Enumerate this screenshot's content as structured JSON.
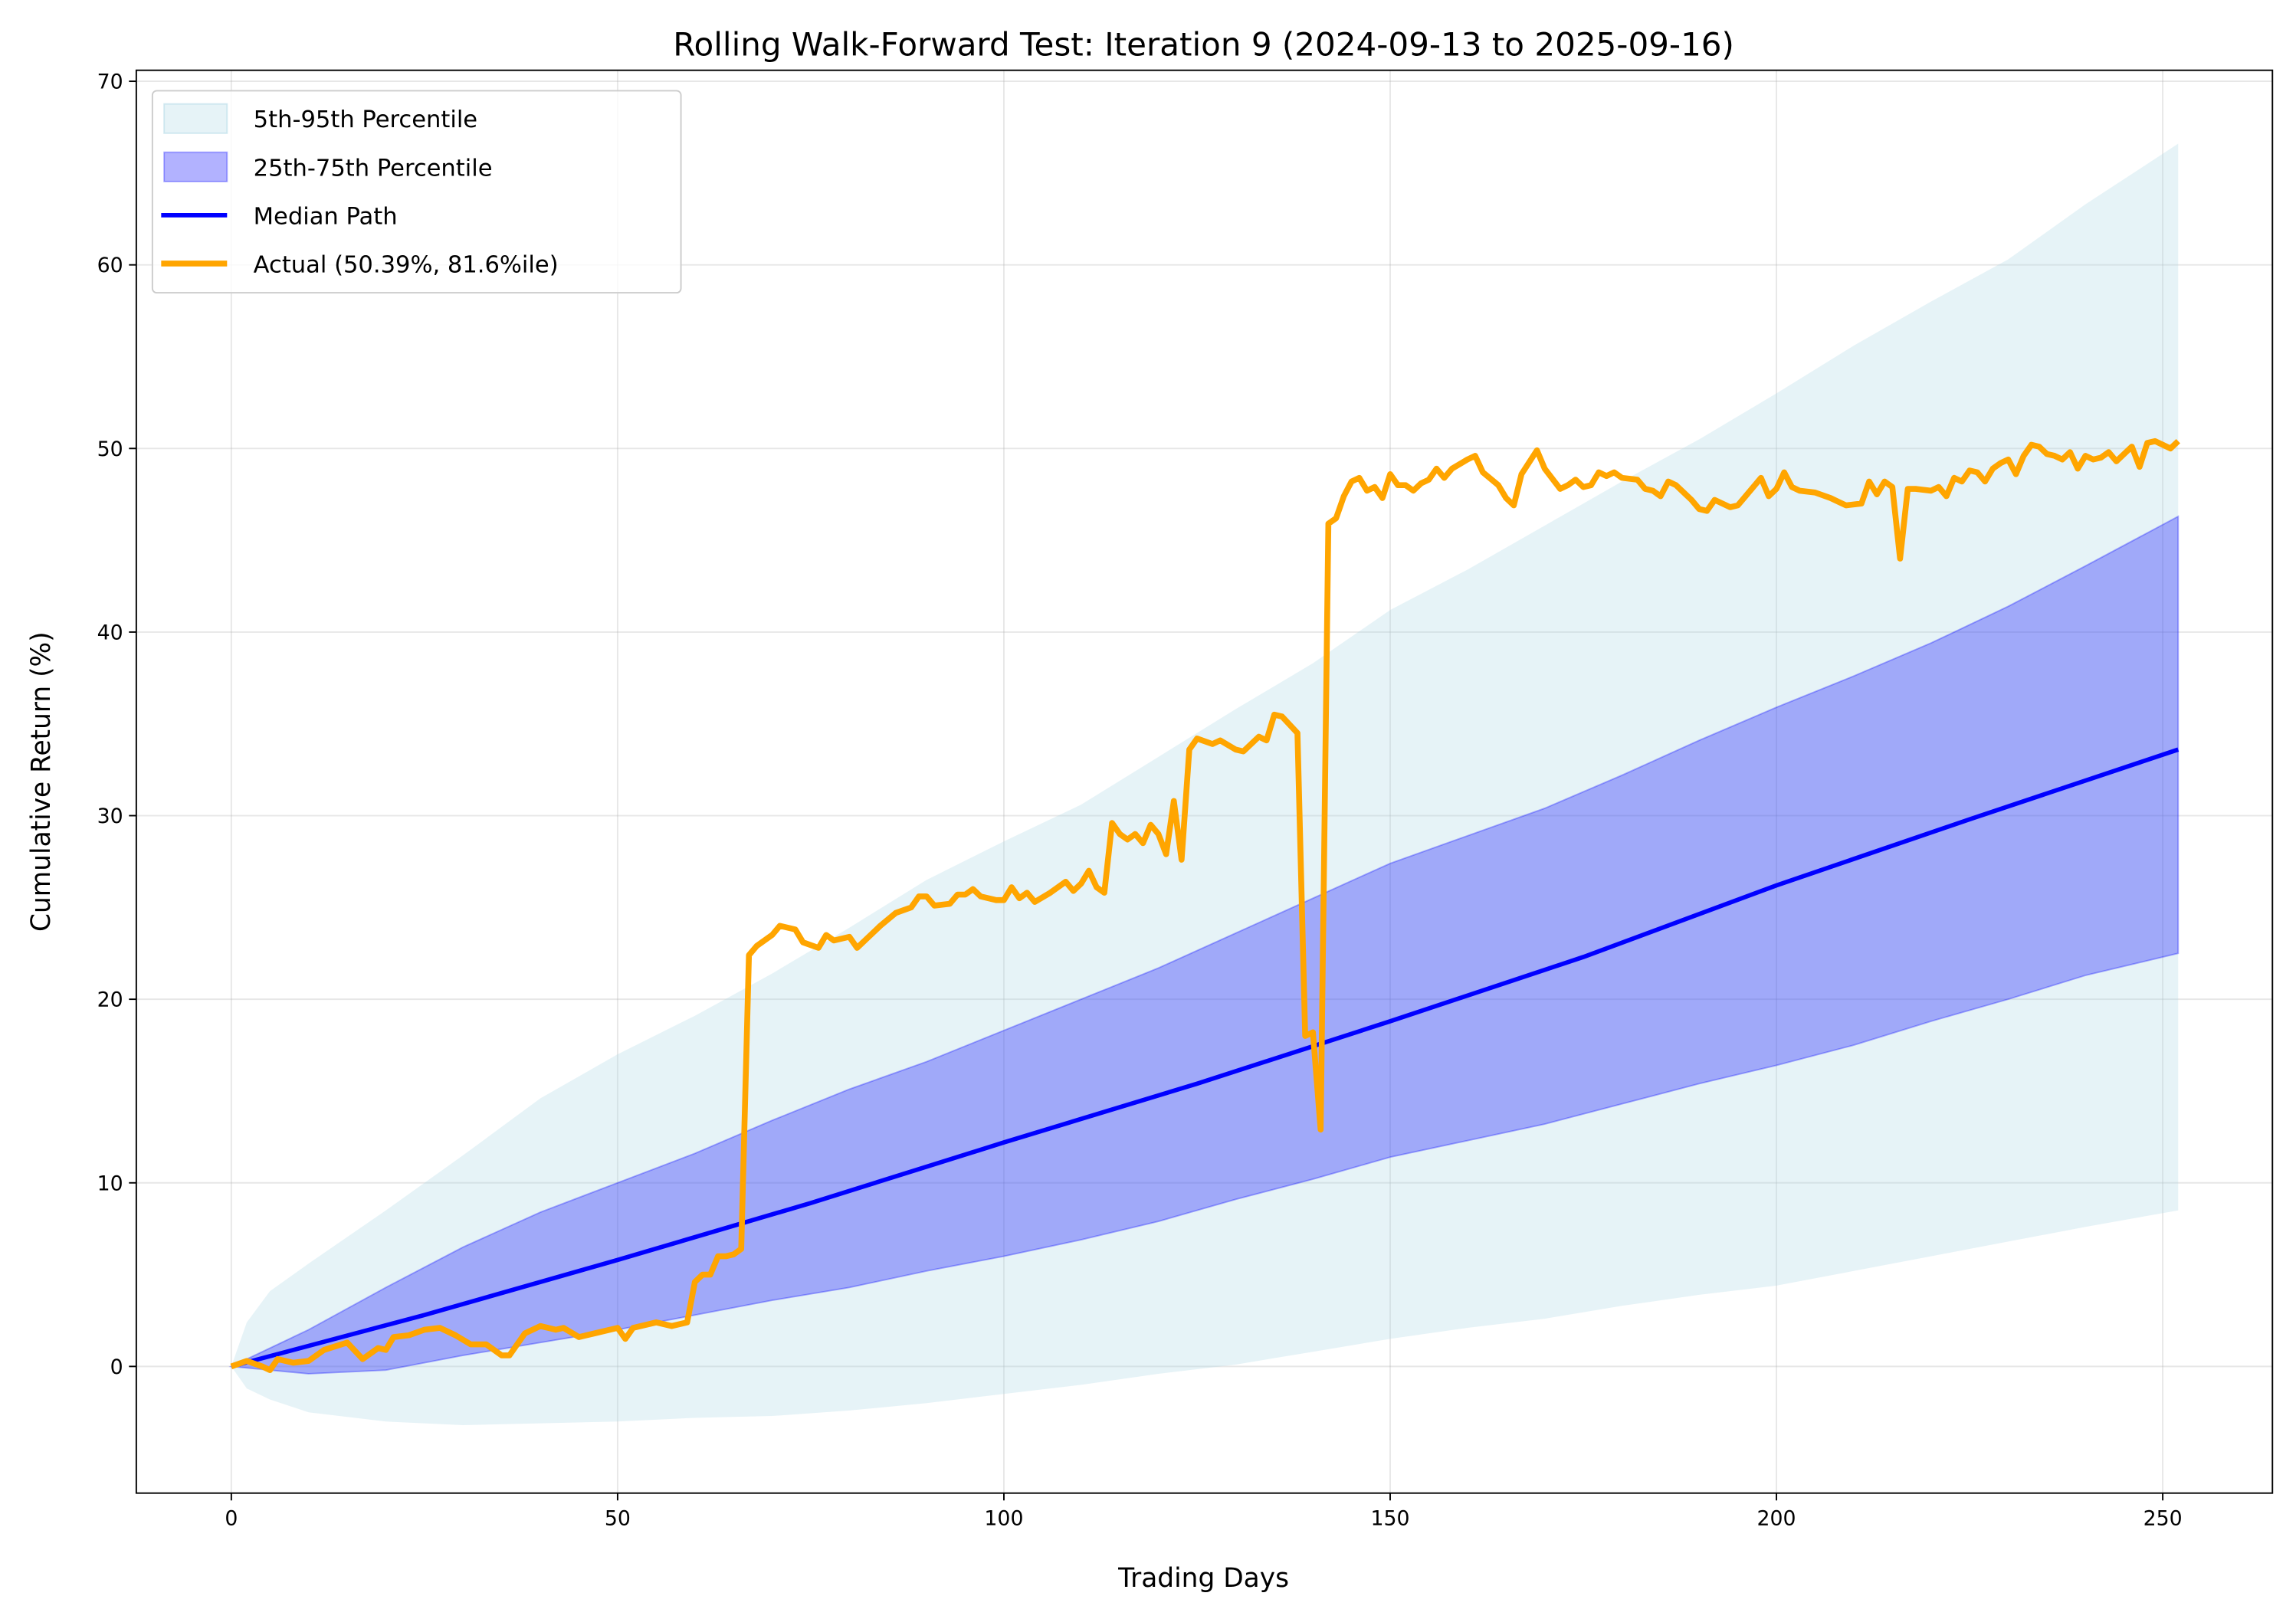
{
  "chart_data": {
    "type": "line",
    "title": "Rolling Walk-Forward Test: Iteration 9 (2024-09-13 to 2025-09-16)",
    "xlabel": "Trading Days",
    "ylabel": "Cumulative Return (%)",
    "xlim": [
      -12.3,
      264.2
    ],
    "ylim": [
      -6.9,
      70.6
    ],
    "xticks": [
      0,
      50,
      100,
      150,
      200,
      250
    ],
    "yticks": [
      0,
      10,
      20,
      30,
      40,
      50,
      60,
      70
    ],
    "grid": true,
    "legend_position": "top-left",
    "bands": [
      {
        "name": "5th-95th Percentile",
        "color": "#add8e6",
        "alpha": 0.3,
        "x": [
          0,
          2,
          5,
          10,
          20,
          30,
          40,
          50,
          60,
          70,
          80,
          90,
          100,
          110,
          120,
          130,
          140,
          150,
          160,
          170,
          180,
          190,
          200,
          210,
          220,
          230,
          240,
          252
        ],
        "lower": [
          0,
          -1.2,
          -1.8,
          -2.5,
          -3.0,
          -3.2,
          -3.1,
          -3.0,
          -2.8,
          -2.7,
          -2.4,
          -2.0,
          -1.5,
          -1.0,
          -0.4,
          0.1,
          0.8,
          1.5,
          2.1,
          2.6,
          3.3,
          3.9,
          4.4,
          5.2,
          6.0,
          6.8,
          7.6,
          8.5
        ],
        "upper": [
          0,
          2.4,
          4.1,
          5.6,
          8.5,
          11.5,
          14.6,
          17.0,
          19.1,
          21.4,
          23.9,
          26.5,
          28.6,
          30.6,
          33.2,
          35.8,
          38.3,
          41.2,
          43.4,
          45.8,
          48.2,
          50.5,
          53.0,
          55.6,
          58.0,
          60.3,
          63.3,
          66.6
        ]
      },
      {
        "name": "25th-75th Percentile",
        "color": "#0000ff",
        "alpha": 0.3,
        "x": [
          0,
          10,
          20,
          30,
          40,
          50,
          60,
          70,
          80,
          90,
          100,
          110,
          120,
          130,
          140,
          150,
          160,
          170,
          180,
          190,
          200,
          210,
          220,
          230,
          240,
          252
        ],
        "lower": [
          0,
          -0.4,
          -0.2,
          0.6,
          1.3,
          2.0,
          2.8,
          3.6,
          4.3,
          5.2,
          6.0,
          6.9,
          7.9,
          9.1,
          10.2,
          11.4,
          12.3,
          13.2,
          14.3,
          15.4,
          16.4,
          17.5,
          18.8,
          20.0,
          21.3,
          22.5
        ],
        "upper": [
          0,
          2.0,
          4.3,
          6.5,
          8.4,
          10.0,
          11.6,
          13.4,
          15.1,
          16.6,
          18.3,
          20.0,
          21.7,
          23.6,
          25.5,
          27.4,
          28.9,
          30.4,
          32.2,
          34.1,
          35.9,
          37.6,
          39.4,
          41.4,
          43.6,
          46.3
        ]
      }
    ],
    "series": [
      {
        "name": "Median Path",
        "color": "#0000ff",
        "x": [
          0,
          25,
          50,
          75,
          100,
          125,
          150,
          175,
          200,
          225,
          252
        ],
        "y": [
          0,
          2.8,
          5.8,
          8.9,
          12.2,
          15.4,
          18.8,
          22.3,
          26.2,
          29.8,
          33.6
        ]
      },
      {
        "name": "Actual (50.39%, 81.6%ile)",
        "color": "#ffa500",
        "x": [
          0,
          2,
          4,
          5,
          6,
          8,
          10,
          12,
          15,
          17,
          19,
          20,
          21,
          23,
          25,
          27,
          29,
          31,
          33,
          35,
          36,
          37,
          38,
          40,
          42,
          43,
          45,
          47,
          50,
          51,
          52,
          55,
          57,
          59,
          60,
          61,
          62,
          63,
          64,
          65,
          66,
          67,
          68,
          70,
          71,
          73,
          74,
          76,
          77,
          78,
          80,
          81,
          82,
          84,
          86,
          88,
          89,
          90,
          91,
          93,
          94,
          95,
          96,
          97,
          99,
          100,
          101,
          102,
          103,
          104,
          106,
          108,
          109,
          110,
          111,
          112,
          113,
          114,
          115,
          116,
          117,
          118,
          119,
          120,
          121,
          122,
          123,
          124,
          125,
          127,
          128,
          130,
          131,
          133,
          134,
          135,
          136,
          138,
          139,
          140,
          141,
          142,
          143,
          144,
          145,
          146,
          147,
          148,
          149,
          150,
          151,
          152,
          153,
          154,
          155,
          156,
          157,
          158,
          160,
          161,
          162,
          164,
          165,
          166,
          167,
          169,
          170,
          172,
          173,
          174,
          175,
          176,
          177,
          178,
          179,
          180,
          182,
          183,
          184,
          185,
          186,
          187,
          188,
          189,
          190,
          191,
          192,
          194,
          195,
          196,
          197,
          198,
          199,
          200,
          201,
          202,
          203,
          205,
          207,
          208,
          209,
          211,
          212,
          213,
          214,
          215,
          216,
          217,
          218,
          220,
          221,
          222,
          223,
          224,
          225,
          226,
          227,
          228,
          229,
          230,
          231,
          232,
          233,
          234,
          235,
          236,
          237,
          238,
          239,
          240,
          241,
          242,
          243,
          244,
          246,
          247,
          248,
          249,
          250,
          251,
          252
        ],
        "y": [
          0,
          0.3,
          0,
          -0.2,
          0.4,
          0.2,
          0.3,
          0.9,
          1.3,
          0.4,
          1.0,
          0.9,
          1.6,
          1.7,
          2.0,
          2.1,
          1.7,
          1.2,
          1.2,
          0.6,
          0.6,
          1.2,
          1.8,
          2.2,
          2.0,
          2.1,
          1.6,
          1.8,
          2.1,
          1.5,
          2.1,
          2.4,
          2.2,
          2.4,
          4.6,
          5.0,
          5.0,
          6.0,
          6.0,
          6.1,
          6.4,
          22.4,
          22.9,
          23.5,
          24.0,
          23.8,
          23.1,
          22.8,
          23.5,
          23.2,
          23.4,
          22.8,
          23.2,
          24.0,
          24.7,
          25.0,
          25.6,
          25.6,
          25.1,
          25.2,
          25.7,
          25.7,
          26.0,
          25.6,
          25.4,
          25.4,
          26.1,
          25.5,
          25.8,
          25.3,
          25.8,
          26.4,
          25.9,
          26.3,
          27.0,
          26.1,
          25.8,
          29.6,
          29.0,
          28.7,
          29.0,
          28.5,
          29.5,
          29.0,
          27.9,
          30.8,
          27.6,
          33.6,
          34.2,
          33.9,
          34.1,
          33.6,
          33.5,
          34.3,
          34.1,
          35.5,
          35.4,
          34.5,
          18.0,
          18.2,
          12.9,
          45.9,
          46.2,
          47.4,
          48.2,
          48.4,
          47.7,
          47.9,
          47.3,
          48.6,
          48.0,
          48.0,
          47.7,
          48.1,
          48.3,
          48.9,
          48.4,
          48.9,
          49.4,
          49.6,
          48.7,
          48.0,
          47.3,
          46.9,
          48.6,
          49.9,
          48.9,
          47.8,
          48.0,
          48.3,
          47.9,
          48.0,
          48.7,
          48.5,
          48.7,
          48.4,
          48.3,
          47.8,
          47.7,
          47.4,
          48.2,
          48.0,
          47.6,
          47.2,
          46.7,
          46.6,
          47.2,
          46.8,
          46.9,
          47.4,
          47.9,
          48.4,
          47.4,
          47.8,
          48.7,
          47.9,
          47.7,
          47.6,
          47.3,
          47.1,
          46.9,
          47.0,
          48.2,
          47.5,
          48.2,
          47.9,
          44.0,
          47.8,
          47.8,
          47.7,
          47.9,
          47.4,
          48.4,
          48.2,
          48.8,
          48.7,
          48.2,
          48.9,
          49.2,
          49.4,
          48.6,
          49.6,
          50.2,
          50.1,
          49.7,
          49.6,
          49.4,
          49.8,
          48.9,
          49.6,
          49.4,
          49.5,
          49.8,
          49.3,
          50.1,
          49.0,
          50.3,
          50.4,
          50.2,
          50.0,
          50.4
        ]
      }
    ]
  }
}
